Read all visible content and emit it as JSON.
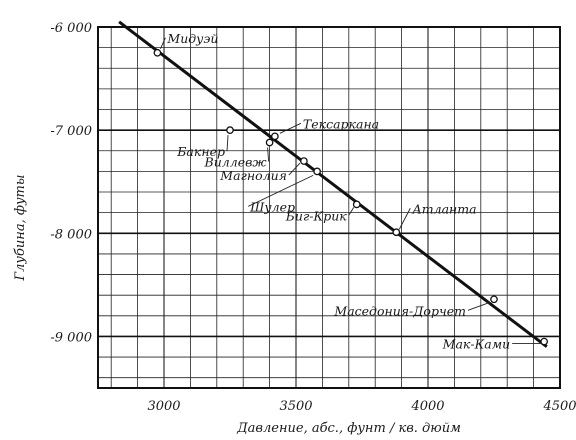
{
  "chart_data": {
    "type": "scatter",
    "title": "",
    "xlabel": "Давление, абс., фунт / кв. дюйм",
    "ylabel": "Глубина, футы",
    "xlim": [
      2750,
      4500
    ],
    "ylim": [
      -9500,
      -6000
    ],
    "x_ticks": [
      3000,
      3500,
      4000,
      4500
    ],
    "x_tick_labels": [
      "3000",
      "3500",
      "4000",
      "4500"
    ],
    "y_ticks": [
      -6000,
      -7000,
      -8000,
      -9000
    ],
    "y_tick_labels": [
      "-6 000",
      "-7 000",
      "-8 000",
      "-9 000"
    ],
    "grid": true,
    "points": [
      {
        "name": "Мидуэй",
        "x": 2975,
        "y": -6250
      },
      {
        "name": "Бакнер",
        "x": 3250,
        "y": -7000
      },
      {
        "name": "Виллевж",
        "x": 3400,
        "y": -7120
      },
      {
        "name": "Тексаркана",
        "x": 3420,
        "y": -7060
      },
      {
        "name": "Магнолия",
        "x": 3530,
        "y": -7300
      },
      {
        "name": "Шулер",
        "x": 3580,
        "y": -7400
      },
      {
        "name": "Биг-Крик",
        "x": 3730,
        "y": -7720
      },
      {
        "name": "Атланта",
        "x": 3880,
        "y": -7990
      },
      {
        "name": "Маседония-Дорчет",
        "x": 4250,
        "y": -8640
      },
      {
        "name": "Мак-Ками",
        "x": 4440,
        "y": -9050
      }
    ],
    "trend_line": {
      "x": [
        2830,
        4450
      ],
      "y": [
        -5950,
        -9100
      ]
    }
  }
}
